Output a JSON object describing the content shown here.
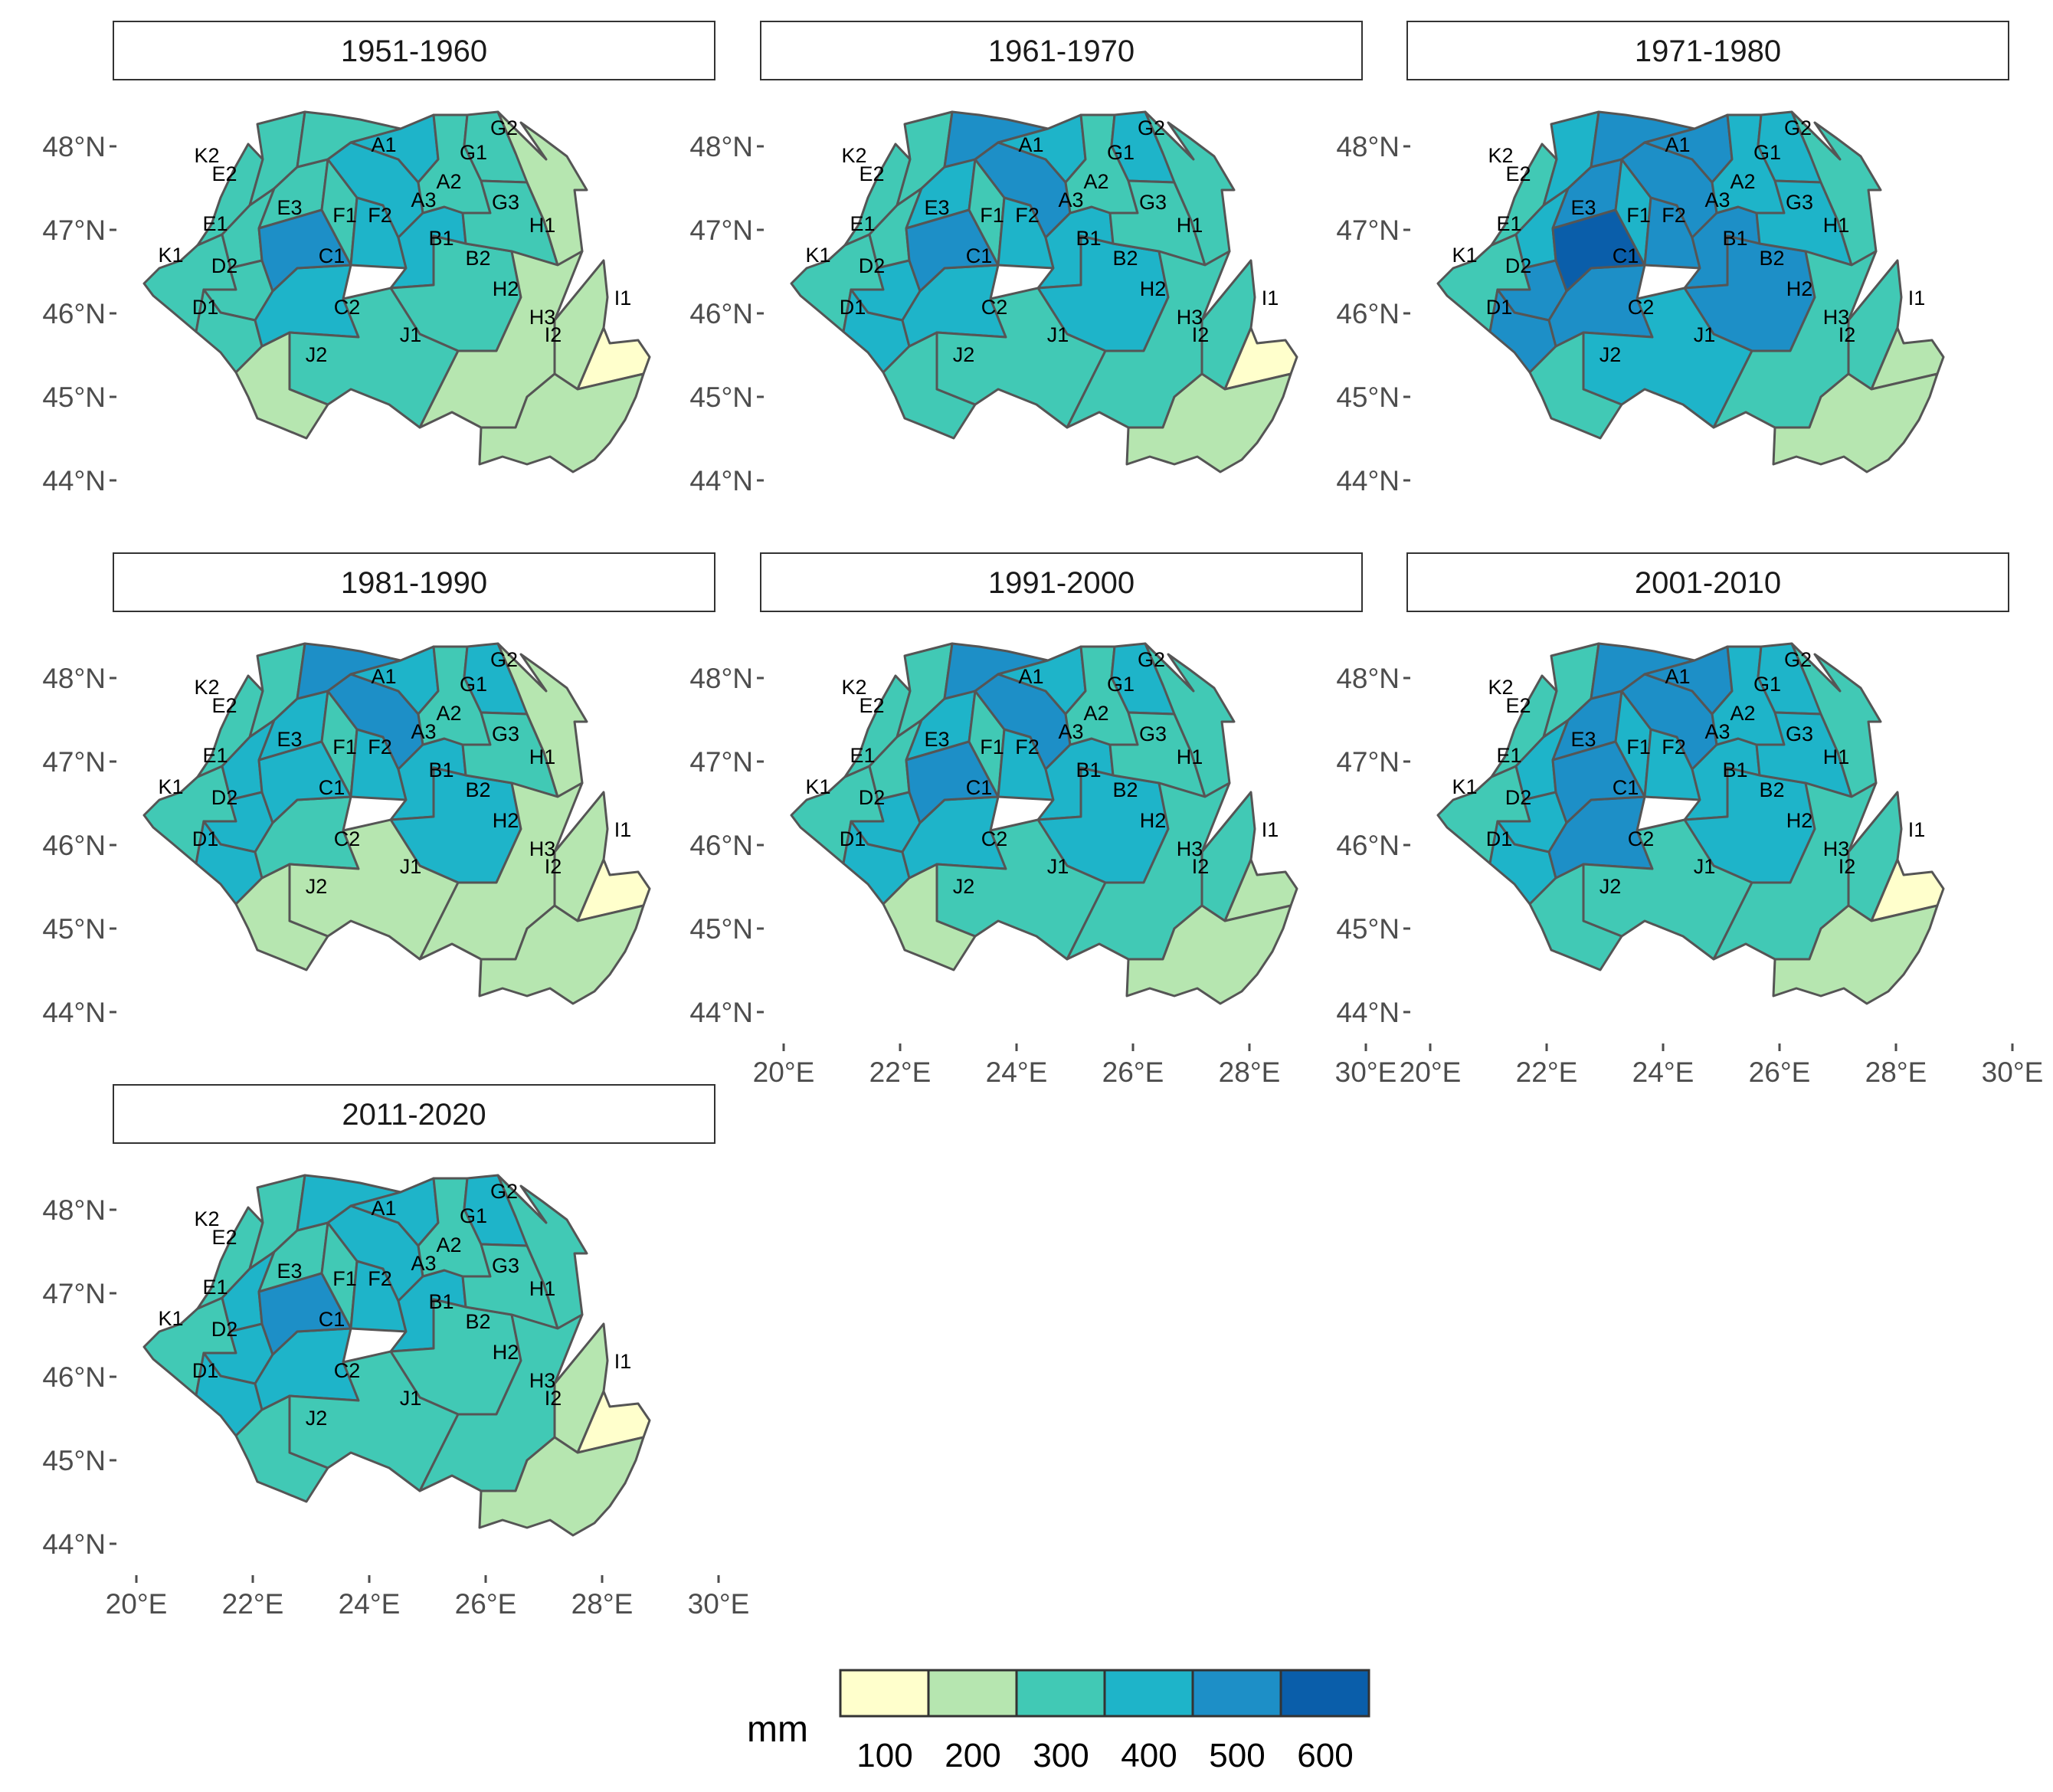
{
  "figure": {
    "x_ticks": [
      "20°E",
      "22°E",
      "24°E",
      "26°E",
      "28°E",
      "30°E"
    ],
    "y_ticks": [
      "48°N",
      "47°N",
      "46°N",
      "45°N",
      "44°N"
    ],
    "regions": [
      "A1",
      "A2",
      "A3",
      "B1",
      "B2",
      "C1",
      "C2",
      "D1",
      "D2",
      "E1",
      "E2",
      "E3",
      "F1",
      "F2",
      "G1",
      "G2",
      "G3",
      "H1",
      "H2",
      "H3",
      "I1",
      "I2",
      "J1",
      "J2",
      "K1",
      "K2"
    ],
    "panels": [
      {
        "title": "1951-1960",
        "classes": {
          "A1": 3,
          "A2": 4,
          "A3": 4,
          "B1": 4,
          "B2": 3,
          "C1": 5,
          "C2": 4,
          "D1": 3,
          "D2": 3,
          "E1": 3,
          "E2": 3,
          "E3": 3,
          "F1": 3,
          "F2": 4,
          "G1": 3,
          "G2": 3,
          "G3": 3,
          "H1": 2,
          "H2": 2,
          "H3": 2,
          "I1": 1,
          "I2": 2,
          "J1": 3,
          "J2": 2,
          "K1": 3,
          "K2": 3
        }
      },
      {
        "title": "1961-1970",
        "classes": {
          "A1": 5,
          "A2": 4,
          "A3": 5,
          "B1": 4,
          "B2": 4,
          "C1": 5,
          "C2": 4,
          "D1": 4,
          "D2": 4,
          "E1": 3,
          "E2": 3,
          "E3": 4,
          "F1": 3,
          "F2": 4,
          "G1": 3,
          "G2": 4,
          "G3": 3,
          "H1": 3,
          "H2": 3,
          "H3": 3,
          "I1": 1,
          "I2": 2,
          "J1": 3,
          "J2": 3,
          "K1": 3,
          "K2": 3
        }
      },
      {
        "title": "1971-1980",
        "classes": {
          "A1": 5,
          "A2": 5,
          "A3": 5,
          "B1": 5,
          "B2": 5,
          "C1": 6,
          "C2": 5,
          "D1": 5,
          "D2": 5,
          "E1": 4,
          "E2": 4,
          "E3": 5,
          "F1": 4,
          "F2": 5,
          "G1": 4,
          "G2": 4,
          "G3": 4,
          "H1": 3,
          "H2": 3,
          "H3": 3,
          "I1": 2,
          "I2": 2,
          "J1": 4,
          "J2": 3,
          "K1": 3,
          "K2": 3
        }
      },
      {
        "title": "1981-1990",
        "classes": {
          "A1": 5,
          "A2": 4,
          "A3": 5,
          "B1": 4,
          "B2": 4,
          "C1": 4,
          "C2": 3,
          "D1": 4,
          "D2": 4,
          "E1": 4,
          "E2": 3,
          "E3": 4,
          "F1": 3,
          "F2": 4,
          "G1": 3,
          "G2": 4,
          "G3": 3,
          "H1": 2,
          "H2": 2,
          "H3": 2,
          "I1": 1,
          "I2": 2,
          "J1": 2,
          "J2": 2,
          "K1": 3,
          "K2": 3
        }
      },
      {
        "title": "1991-2000",
        "classes": {
          "A1": 5,
          "A2": 4,
          "A3": 5,
          "B1": 4,
          "B2": 4,
          "C1": 5,
          "C2": 4,
          "D1": 4,
          "D2": 4,
          "E1": 3,
          "E2": 3,
          "E3": 4,
          "F1": 3,
          "F2": 4,
          "G1": 3,
          "G2": 4,
          "G3": 3,
          "H1": 3,
          "H2": 3,
          "H3": 3,
          "I1": 2,
          "I2": 2,
          "J1": 3,
          "J2": 2,
          "K1": 3,
          "K2": 3
        }
      },
      {
        "title": "2001-2010",
        "classes": {
          "A1": 5,
          "A2": 5,
          "A3": 5,
          "B1": 4,
          "B2": 4,
          "C1": 5,
          "C2": 5,
          "D1": 4,
          "D2": 4,
          "E1": 4,
          "E2": 3,
          "E3": 5,
          "F1": 4,
          "F2": 4,
          "G1": 4,
          "G2": 4,
          "G3": 4,
          "H1": 3,
          "H2": 3,
          "H3": 3,
          "I1": 1,
          "I2": 2,
          "J1": 3,
          "J2": 3,
          "K1": 3,
          "K2": 3
        }
      },
      {
        "title": "2011-2020",
        "classes": {
          "A1": 4,
          "A2": 4,
          "A3": 4,
          "B1": 4,
          "B2": 3,
          "C1": 5,
          "C2": 4,
          "D1": 4,
          "D2": 4,
          "E1": 4,
          "E2": 3,
          "E3": 3,
          "F1": 3,
          "F2": 4,
          "G1": 3,
          "G2": 4,
          "G3": 3,
          "H1": 3,
          "H2": 3,
          "H3": 2,
          "I1": 1,
          "I2": 2,
          "J1": 3,
          "J2": 3,
          "K1": 3,
          "K2": 3
        }
      }
    ]
  },
  "legend": {
    "title": "mm",
    "labels": [
      "100",
      "200",
      "300",
      "400",
      "500",
      "600"
    ],
    "colors": [
      "#ffffcc",
      "#b6e6b0",
      "#41c9b5",
      "#1eb4c9",
      "#1d8fc7",
      "#0a5eaa"
    ]
  },
  "colors": {
    "border": "#555555",
    "strip_border": "#333333",
    "tick": "#4d4d4d"
  }
}
